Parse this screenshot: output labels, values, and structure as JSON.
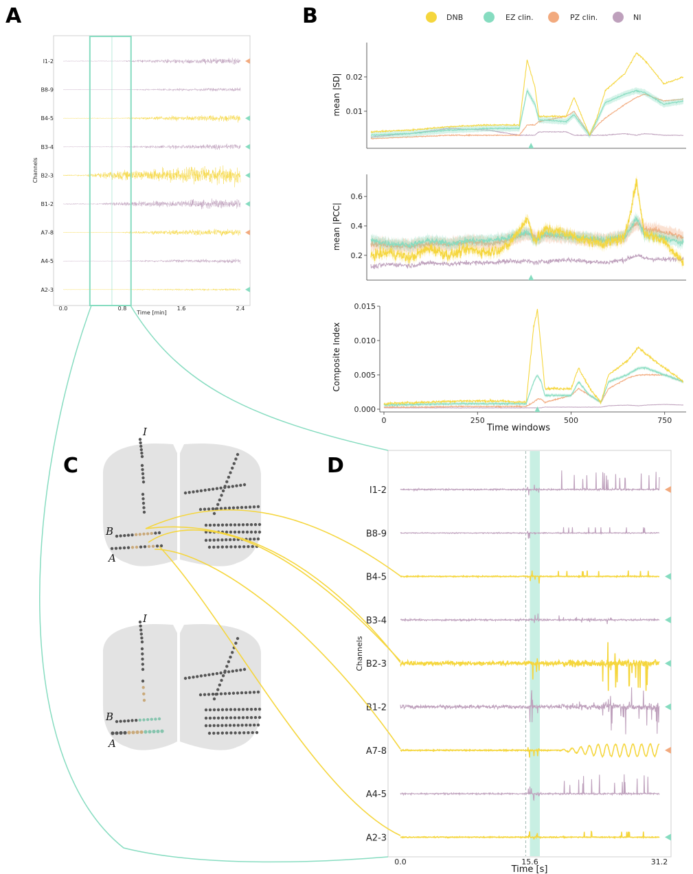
{
  "panel_letters": [
    "A",
    "B",
    "C",
    "D"
  ],
  "colors": {
    "DNB": "#f5d63d",
    "EZ": "#86dcc0",
    "PZ": "#f2aa7e",
    "NI": "#bea0bc",
    "zoom_box": "#86dcc0",
    "electrode": "#555555",
    "brain": "#d9d9d9"
  },
  "legend": {
    "entries": [
      {
        "label": "DNB",
        "color": "#f5d63d"
      },
      {
        "label": "EZ clin.",
        "color": "#86dcc0"
      },
      {
        "label": "PZ clin.",
        "color": "#f2aa7e"
      },
      {
        "label": "NI",
        "color": "#bea0bc"
      }
    ]
  },
  "panel_c": {
    "electrode_labels": [
      "I",
      "B",
      "A",
      "I",
      "B",
      "A"
    ]
  },
  "chart_data": [
    {
      "panel": "A",
      "type": "line",
      "ylabel": "Channels",
      "xlabel": "Time [min]",
      "xticks": [
        "0.0",
        "0.8",
        "1.6",
        "2.4"
      ],
      "xlim": [
        0.0,
        2.4
      ],
      "zoom_window": [
        0.38,
        0.9
      ],
      "series": [
        {
          "name": "I1-2",
          "class": "NI",
          "marker": "PZ",
          "onset": 0.82,
          "amp": [
            0.05,
            0.55
          ]
        },
        {
          "name": "B8-9",
          "class": "NI",
          "marker": "",
          "onset": 0.85,
          "amp": [
            0.03,
            0.3
          ]
        },
        {
          "name": "B4-5",
          "class": "DNB",
          "marker": "EZ",
          "onset": 0.82,
          "amp": [
            0.05,
            0.6
          ]
        },
        {
          "name": "B3-4",
          "class": "NI",
          "marker": "EZ",
          "onset": 0.84,
          "amp": [
            0.05,
            0.45
          ]
        },
        {
          "name": "B2-3",
          "class": "DNB",
          "marker": "EZ",
          "onset": 0.3,
          "amp": [
            0.12,
            1.6
          ]
        },
        {
          "name": "B1-2",
          "class": "NI",
          "marker": "EZ",
          "onset": 0.5,
          "amp": [
            0.08,
            0.8
          ]
        },
        {
          "name": "A7-8",
          "class": "DNB",
          "marker": "PZ",
          "onset": 0.8,
          "amp": [
            0.05,
            0.6
          ]
        },
        {
          "name": "A4-5",
          "class": "NI",
          "marker": "",
          "onset": 0.82,
          "amp": [
            0.03,
            0.35
          ]
        },
        {
          "name": "A2-3",
          "class": "DNB",
          "marker": "EZ",
          "onset": 0.82,
          "amp": [
            0.03,
            0.2
          ]
        }
      ]
    },
    {
      "panel": "B1",
      "type": "line",
      "ylabel": "mean |SD|",
      "xlim": [
        0,
        800
      ],
      "yticks": [
        "0.01",
        "0.02"
      ],
      "ylim": [
        0.0,
        0.03
      ],
      "onset_marker": 410,
      "series": [
        {
          "name": "DNB",
          "x": [
            0,
            100,
            200,
            300,
            380,
            400,
            420,
            430,
            500,
            520,
            560,
            580,
            600,
            650,
            680,
            700,
            750,
            800
          ],
          "y": [
            0.004,
            0.0045,
            0.0055,
            0.006,
            0.006,
            0.025,
            0.017,
            0.0085,
            0.0085,
            0.014,
            0.003,
            0.0085,
            0.016,
            0.021,
            0.027,
            0.025,
            0.018,
            0.02
          ]
        },
        {
          "name": "EZ clin.",
          "x": [
            0,
            100,
            200,
            300,
            380,
            400,
            420,
            430,
            500,
            520,
            560,
            580,
            600,
            650,
            680,
            700,
            750,
            800
          ],
          "y": [
            0.003,
            0.0035,
            0.0045,
            0.005,
            0.005,
            0.016,
            0.012,
            0.0075,
            0.007,
            0.009,
            0.003,
            0.0075,
            0.0125,
            0.015,
            0.016,
            0.0155,
            0.012,
            0.013
          ]
        },
        {
          "name": "PZ clin.",
          "x": [
            0,
            100,
            200,
            300,
            380,
            400,
            420,
            430,
            500,
            520,
            560,
            580,
            600,
            650,
            680,
            700,
            750,
            800
          ],
          "y": [
            0.002,
            0.0025,
            0.003,
            0.003,
            0.003,
            0.006,
            0.006,
            0.007,
            0.0085,
            0.01,
            0.003,
            0.006,
            0.008,
            0.012,
            0.014,
            0.015,
            0.013,
            0.0135
          ]
        },
        {
          "name": "NI",
          "x": [
            0,
            100,
            200,
            300,
            380,
            400,
            420,
            430,
            500,
            520,
            560,
            580,
            600,
            650,
            680,
            700,
            750,
            800
          ],
          "y": [
            0.0025,
            0.0035,
            0.005,
            0.0045,
            0.003,
            0.003,
            0.003,
            0.004,
            0.004,
            0.003,
            0.003,
            0.003,
            0.003,
            0.0035,
            0.003,
            0.0035,
            0.003,
            0.003
          ]
        }
      ]
    },
    {
      "panel": "B2",
      "type": "line",
      "ylabel": "mean |PCC|",
      "xlim": [
        0,
        800
      ],
      "yticks": [
        "0.2",
        "0.4",
        "0.6"
      ],
      "ylim": [
        0.05,
        0.75
      ],
      "onset_marker": 410,
      "series": [
        {
          "name": "DNB",
          "x": [
            0,
            50,
            100,
            150,
            200,
            250,
            300,
            350,
            400,
            420,
            450,
            500,
            550,
            600,
            650,
            680,
            700,
            750,
            800
          ],
          "y": [
            0.2,
            0.22,
            0.18,
            0.25,
            0.2,
            0.24,
            0.22,
            0.26,
            0.45,
            0.3,
            0.38,
            0.35,
            0.3,
            0.28,
            0.32,
            0.7,
            0.35,
            0.3,
            0.15
          ]
        },
        {
          "name": "EZ clin.",
          "x": [
            0,
            50,
            100,
            150,
            200,
            250,
            300,
            350,
            400,
            420,
            450,
            500,
            550,
            600,
            650,
            680,
            700,
            750,
            800
          ],
          "y": [
            0.3,
            0.28,
            0.27,
            0.3,
            0.28,
            0.3,
            0.3,
            0.32,
            0.36,
            0.3,
            0.35,
            0.33,
            0.32,
            0.3,
            0.33,
            0.45,
            0.34,
            0.32,
            0.28
          ]
        },
        {
          "name": "PZ clin.",
          "x": [
            0,
            50,
            100,
            150,
            200,
            250,
            300,
            350,
            400,
            420,
            450,
            500,
            550,
            600,
            650,
            680,
            700,
            750,
            800
          ],
          "y": [
            0.28,
            0.27,
            0.26,
            0.28,
            0.27,
            0.29,
            0.28,
            0.3,
            0.35,
            0.32,
            0.34,
            0.33,
            0.31,
            0.3,
            0.33,
            0.42,
            0.38,
            0.36,
            0.32
          ]
        },
        {
          "name": "NI",
          "x": [
            0,
            50,
            100,
            150,
            200,
            250,
            300,
            350,
            400,
            420,
            450,
            500,
            550,
            600,
            650,
            680,
            700,
            750,
            800
          ],
          "y": [
            0.12,
            0.14,
            0.13,
            0.15,
            0.14,
            0.15,
            0.15,
            0.16,
            0.16,
            0.15,
            0.16,
            0.17,
            0.16,
            0.15,
            0.17,
            0.2,
            0.18,
            0.17,
            0.18
          ]
        }
      ]
    },
    {
      "panel": "B3",
      "type": "line",
      "ylabel": "Composite Index",
      "xlabel": "Time windows",
      "xlim": [
        0,
        800
      ],
      "xticks": [
        "0",
        "250",
        "500",
        "750"
      ],
      "yticks": [
        "0.000",
        "0.005",
        "0.010",
        "0.015"
      ],
      "ylim": [
        0.0,
        0.015
      ],
      "onset_marker": 410,
      "series": [
        {
          "name": "DNB",
          "x": [
            0,
            100,
            200,
            300,
            380,
            400,
            410,
            420,
            430,
            500,
            520,
            550,
            580,
            600,
            650,
            680,
            700,
            750,
            800
          ],
          "y": [
            0.0008,
            0.001,
            0.0012,
            0.0012,
            0.001,
            0.012,
            0.0145,
            0.009,
            0.003,
            0.003,
            0.006,
            0.003,
            0.001,
            0.005,
            0.007,
            0.009,
            0.008,
            0.006,
            0.004
          ]
        },
        {
          "name": "EZ clin.",
          "x": [
            0,
            100,
            200,
            300,
            380,
            400,
            410,
            420,
            430,
            500,
            520,
            550,
            580,
            600,
            650,
            680,
            700,
            750,
            800
          ],
          "y": [
            0.0006,
            0.0007,
            0.0008,
            0.0008,
            0.0008,
            0.004,
            0.005,
            0.004,
            0.002,
            0.002,
            0.004,
            0.002,
            0.001,
            0.004,
            0.005,
            0.006,
            0.006,
            0.005,
            0.004
          ]
        },
        {
          "name": "PZ clin.",
          "x": [
            0,
            100,
            200,
            300,
            380,
            400,
            410,
            420,
            430,
            500,
            520,
            550,
            580,
            600,
            650,
            680,
            700,
            750,
            800
          ],
          "y": [
            0.0003,
            0.0003,
            0.0004,
            0.0004,
            0.0004,
            0.001,
            0.0015,
            0.0015,
            0.001,
            0.002,
            0.003,
            0.002,
            0.001,
            0.003,
            0.0045,
            0.005,
            0.005,
            0.005,
            0.004
          ]
        },
        {
          "name": "NI",
          "x": [
            0,
            100,
            200,
            300,
            380,
            400,
            410,
            420,
            430,
            500,
            520,
            550,
            580,
            600,
            650,
            680,
            700,
            750,
            800
          ],
          "y": [
            0.0002,
            0.0002,
            0.0002,
            0.0002,
            0.0002,
            0.0002,
            0.0002,
            0.0002,
            0.0003,
            0.0003,
            0.0003,
            0.0003,
            0.0003,
            0.0005,
            0.0006,
            0.0005,
            0.0006,
            0.0007,
            0.0006
          ]
        }
      ]
    },
    {
      "panel": "D",
      "type": "line",
      "ylabel": "Channels",
      "xlabel": "Time [s]",
      "xticks": [
        "0.0",
        "15.6",
        "31.2"
      ],
      "xlim": [
        0.0,
        31.2
      ],
      "onset_dashed": 15.1,
      "highlight": [
        15.6,
        16.8
      ],
      "series": [
        {
          "name": "I1-2",
          "class": "NI",
          "marker": "PZ",
          "style": "spikes"
        },
        {
          "name": "B8-9",
          "class": "NI",
          "marker": "",
          "style": "quiet"
        },
        {
          "name": "B4-5",
          "class": "DNB",
          "marker": "EZ",
          "style": "quiet"
        },
        {
          "name": "B3-4",
          "class": "NI",
          "marker": "EZ",
          "style": "mild"
        },
        {
          "name": "B2-3",
          "class": "DNB",
          "marker": "EZ",
          "style": "large"
        },
        {
          "name": "B1-2",
          "class": "NI",
          "marker": "EZ",
          "style": "large"
        },
        {
          "name": "A7-8",
          "class": "DNB",
          "marker": "PZ",
          "style": "burst"
        },
        {
          "name": "A4-5",
          "class": "NI",
          "marker": "",
          "style": "spikes"
        },
        {
          "name": "A2-3",
          "class": "DNB",
          "marker": "EZ",
          "style": "quiet"
        }
      ]
    }
  ]
}
